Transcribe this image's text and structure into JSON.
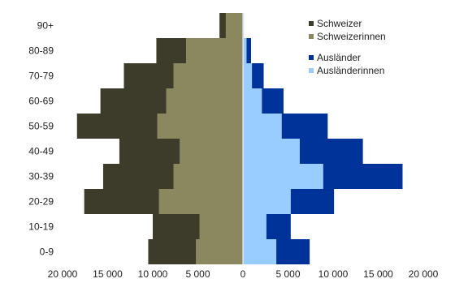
{
  "chart_data": {
    "type": "bar",
    "orientation": "horizontal-stacked-population-pyramid",
    "categories": [
      "0-9",
      "10-19",
      "20-29",
      "30-39",
      "40-49",
      "50-59",
      "60-69",
      "70-79",
      "80-89",
      "90+"
    ],
    "series": [
      {
        "name": "Schweizerinnen",
        "side": "left",
        "color": "#8b8860",
        "values": [
          5200,
          4800,
          9300,
          7700,
          7000,
          9500,
          8500,
          7700,
          6300,
          1900
        ]
      },
      {
        "name": "Schweizer",
        "side": "left",
        "color": "#3d3b2a",
        "values": [
          5300,
          5200,
          8300,
          7800,
          6700,
          8900,
          7300,
          5500,
          3300,
          700
        ]
      },
      {
        "name": "Ausländerinnen",
        "side": "right",
        "color": "#99ccff",
        "values": [
          3700,
          2600,
          5300,
          8900,
          6300,
          4300,
          2100,
          1000,
          400,
          100
        ]
      },
      {
        "name": "Ausländer",
        "side": "right",
        "color": "#003399",
        "values": [
          3700,
          2700,
          4800,
          8800,
          7000,
          5100,
          2400,
          1300,
          500,
          0
        ]
      }
    ],
    "xlim": [
      -20000,
      20000
    ],
    "xticks": [
      -20000,
      -15000,
      -10000,
      -5000,
      0,
      5000,
      10000,
      15000,
      20000
    ],
    "xtick_labels": [
      "20 000",
      "15 000",
      "10 000",
      "5 000",
      "0",
      "5 000",
      "10 000",
      "15 000",
      "20 000"
    ],
    "legend": {
      "placement": "top-right",
      "groups": [
        [
          {
            "name": "Schweizer",
            "color": "#3d3b2a"
          },
          {
            "name": "Schweizerinnen",
            "color": "#8b8860"
          }
        ],
        [
          {
            "name": "Ausländer",
            "color": "#003399"
          },
          {
            "name": "Ausländerinnen",
            "color": "#99ccff"
          }
        ]
      ]
    },
    "grid": false
  }
}
